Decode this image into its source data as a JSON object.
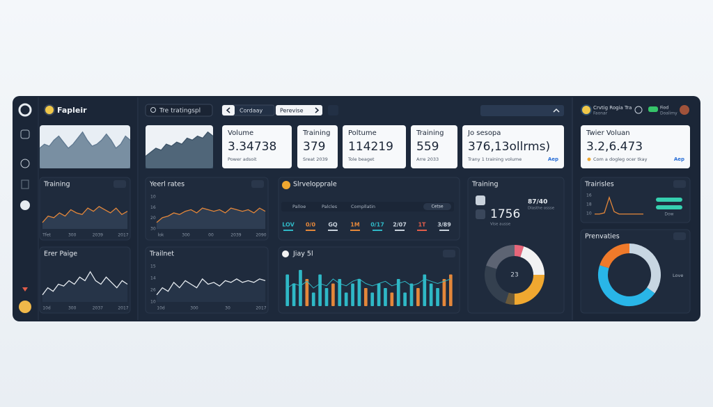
{
  "brand": "Fapleir",
  "search": "Tre tratingspl",
  "tabs": [
    "Cordaay",
    "Perevise"
  ],
  "user": {
    "name": "Crvtig Rogia Tra",
    "sub": "Faonar",
    "status": "Fiod",
    "status_sub": "Doalimy"
  },
  "hero_charts": [
    {
      "ylim": [
        0,
        10
      ],
      "values": [
        5,
        6,
        5.5,
        7,
        8,
        6.5,
        5,
        6,
        7.5,
        9,
        7,
        5.5,
        6,
        7,
        8.5,
        7,
        5,
        6,
        8,
        7
      ]
    },
    {
      "ylim": [
        0,
        10
      ],
      "values": [
        3,
        4,
        5,
        4.5,
        6,
        5.5,
        6.5,
        6,
        7.5,
        7,
        8,
        7.5,
        9,
        8
      ]
    }
  ],
  "cards": [
    {
      "title": "Volume",
      "value": "3.34738",
      "note": "Power adsoit"
    },
    {
      "title": "Training",
      "value": "379",
      "note": "Sreat 2039"
    },
    {
      "title": "Poltume",
      "value": "114219",
      "note": "Tole beaget"
    },
    {
      "title": "Training",
      "value": "559",
      "note": "Arre 2033"
    },
    {
      "title": "Jo sesopa",
      "value": "376,13ollrms)",
      "note": "Trany 1 training volume",
      "link": "Aep"
    },
    {
      "title": "Twier Voluan",
      "value": "3.2,6.473",
      "note": "Com a dogleg ocer tkay",
      "link": "Aep"
    }
  ],
  "panels": {
    "training": {
      "title": "Training",
      "ylim": [
        0,
        10
      ],
      "values": [
        2,
        4,
        3.5,
        5,
        4,
        6,
        5,
        4.5,
        6.5,
        5.5,
        7,
        6,
        5,
        6.5,
        4.5,
        5.5
      ],
      "x_labels": [
        "Tfet",
        "300",
        "2039",
        "2017"
      ]
    },
    "erer": {
      "title": "Erer Paige",
      "ylim": [
        0,
        10
      ],
      "values": [
        2,
        4,
        3,
        5,
        4.5,
        6,
        5,
        7,
        6,
        8.5,
        6,
        5,
        7,
        5.5,
        4,
        6,
        5
      ],
      "x_labels": [
        "10d",
        "300",
        "2037",
        "2017"
      ]
    },
    "yeerl": {
      "title": "Yeerl rates",
      "ylim": [
        0,
        10
      ],
      "values": [
        2,
        3.5,
        4,
        5,
        4.5,
        5.5,
        6,
        5,
        6.5,
        6,
        5.5,
        6,
        5,
        6.5,
        6,
        5.5,
        6,
        5,
        6.5,
        5.5
      ],
      "y_labels": [
        "10",
        "16",
        "20",
        "30"
      ],
      "x_labels": [
        "lok",
        "300",
        "00",
        "2039",
        "2090"
      ]
    },
    "trailnet": {
      "title": "Trailnet",
      "ylim": [
        0,
        10
      ],
      "values": [
        2,
        4,
        3,
        5.5,
        4,
        6,
        5,
        4,
        6.5,
        5,
        5.5,
        4.5,
        6,
        5.5,
        6.5,
        5.5,
        6,
        5.5,
        6.5,
        6
      ],
      "y_labels": [
        "15",
        "14",
        "26",
        "10"
      ],
      "x_labels": [
        "10d",
        "300",
        "30",
        "2017"
      ]
    },
    "slrv": {
      "title": "Slrvelopprale",
      "filters": [
        "Palloe",
        "Palcles",
        "Compllatin"
      ],
      "button": "Cetse",
      "stats": [
        {
          "text": "LOV",
          "color": "#2fb8c6"
        },
        {
          "text": "0/0",
          "color": "#e4873a"
        },
        {
          "text": "GQ",
          "color": "#c9d2dc"
        },
        {
          "text": "1M",
          "color": "#e4873a"
        },
        {
          "text": "0/17",
          "color": "#2fb8c6"
        },
        {
          "text": "2/07",
          "color": "#c9d2dc"
        },
        {
          "text": "1T",
          "color": "#e25d4a"
        },
        {
          "text": "3/89",
          "color": "#c9d2dc"
        }
      ]
    },
    "jiay": {
      "title": "Jiay 5l",
      "ylim": [
        0,
        10
      ],
      "bars": [
        7,
        5,
        8,
        6,
        3,
        7,
        4,
        5,
        6,
        3,
        5,
        6,
        4,
        3,
        5,
        4,
        3,
        6,
        3,
        5,
        4,
        7,
        5,
        4,
        6,
        7
      ],
      "bar_colors": [
        "#2fb8c6",
        "#2fb8c6",
        "#2fb8c6",
        "#e4873a",
        "#2fb8c6",
        "#2fb8c6",
        "#2fb8c6",
        "#e4873a",
        "#2fb8c6",
        "#2fb8c6",
        "#2fb8c6",
        "#2fb8c6",
        "#e4873a",
        "#2fb8c6",
        "#2fb8c6",
        "#2fb8c6",
        "#e4873a",
        "#2fb8c6",
        "#2fb8c6",
        "#2fb8c6",
        "#e4873a",
        "#2fb8c6",
        "#2fb8c6",
        "#2fb8c6",
        "#e4873a",
        "#e4873a"
      ],
      "line": [
        4,
        5,
        4.5,
        5.5,
        4,
        5,
        4.5,
        6,
        5,
        4.5,
        5.5,
        6,
        5,
        4.5,
        5,
        5.5,
        4.5,
        5,
        5.5,
        4.5,
        5,
        6,
        5.5,
        5,
        5.5,
        6
      ]
    },
    "donut": {
      "title": "Training",
      "stat": "87/40",
      "stat_note": "Dlasthe ossse",
      "value": "1756",
      "value_note": "Vise ausse",
      "center": "23",
      "segments": [
        {
          "value": 5,
          "color": "#e7667a"
        },
        {
          "value": 20,
          "color": "#f2f2f2"
        },
        {
          "value": 25,
          "color": "#f0a830"
        },
        {
          "value": 5,
          "color": "#6b5a3a"
        },
        {
          "value": 25,
          "color": "#34404f"
        },
        {
          "value": 20,
          "color": "#5d6473"
        }
      ]
    },
    "trairisles": {
      "title": "Trairisles",
      "ylim": [
        0,
        10
      ],
      "values": [
        1,
        1,
        1.5,
        8,
        2,
        1,
        1,
        1,
        1,
        1,
        1
      ],
      "y_labels": [
        "16",
        "18",
        "10"
      ],
      "x_label": "Dow"
    },
    "prenvaties": {
      "title": "Prenvaties",
      "legend": "Love",
      "segments": [
        {
          "value": 35,
          "color": "#c8d6e2"
        },
        {
          "value": 45,
          "color": "#29b6e8"
        },
        {
          "value": 20,
          "color": "#f07a2a"
        }
      ]
    }
  }
}
